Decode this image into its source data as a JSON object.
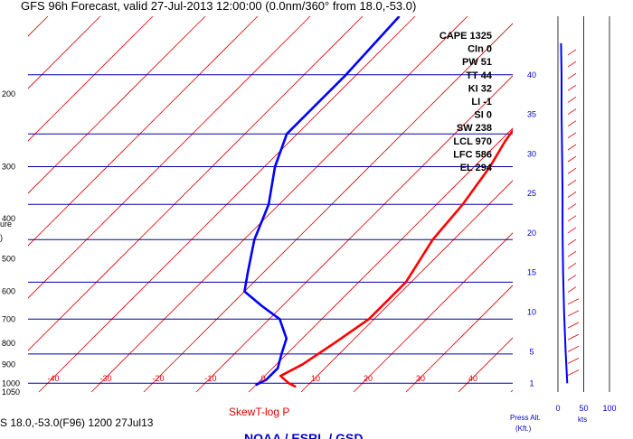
{
  "title": "GFS 96h Forecast, valid 27-Jul-2013 12:00:00 (0.0nm/360° from 18.0,-53.0)",
  "footer_left": "S 18.0,-53.0(F96) 1200 27Jul13",
  "footer_center": "SkewT-log P",
  "footer_org": "NOAA / ESRL / GSD",
  "ylabel_fragment": "ure",
  "ylabel_paren": ")",
  "wind_axis_label": "kts",
  "alt_axis_label_1": "Press Alt.",
  "alt_axis_label_2": "(Kft.)",
  "colors": {
    "isobar": "#0000aa",
    "isotherm": "#dd0000",
    "temperature": "#ff0000",
    "dewpoint": "#0000ff",
    "text_blue": "#0000cc"
  },
  "indices": [
    {
      "label": "CAPE 1325"
    },
    {
      "label": "CIn 0"
    },
    {
      "label": "PW 51"
    },
    {
      "label": "TT 44"
    },
    {
      "label": "KI 32"
    },
    {
      "label": "LI -1"
    },
    {
      "label": "SI 0"
    },
    {
      "label": "SW 238"
    },
    {
      "label": "LCL 970"
    },
    {
      "label": "LFC 586"
    },
    {
      "label": "EL 294"
    }
  ],
  "chart_data": [
    {
      "type": "line",
      "title": "SkewT-log P",
      "pressure_ticks": [
        200,
        300,
        400,
        500,
        600,
        700,
        800,
        900,
        1000,
        1050
      ],
      "isobars": [
        180,
        250,
        300,
        370,
        450,
        570,
        700,
        850,
        1000
      ],
      "temperature_ticks": [
        -40,
        -30,
        -20,
        -10,
        0,
        10,
        20,
        30,
        40
      ],
      "ylim": [
        130,
        1050
      ],
      "series": [
        {
          "key": "temperature",
          "color": "#ff0000",
          "points": [
            {
              "p": 130,
              "t": -5
            },
            {
              "p": 180,
              "t": -3
            },
            {
              "p": 210,
              "t": -1
            },
            {
              "p": 260,
              "t": 1
            },
            {
              "p": 300,
              "t": 3
            },
            {
              "p": 370,
              "t": 5
            },
            {
              "p": 450,
              "t": 6
            },
            {
              "p": 570,
              "t": 9
            },
            {
              "p": 700,
              "t": 9
            },
            {
              "p": 800,
              "t": 7
            },
            {
              "p": 900,
              "t": 5
            },
            {
              "p": 960,
              "t": 3
            },
            {
              "p": 1000,
              "t": 6
            },
            {
              "p": 1020,
              "t": 8
            }
          ]
        },
        {
          "key": "dewpoint",
          "color": "#0000ff",
          "points": [
            {
              "p": 130,
              "t": -43
            },
            {
              "p": 180,
              "t": -42
            },
            {
              "p": 250,
              "t": -42
            },
            {
              "p": 300,
              "t": -38
            },
            {
              "p": 370,
              "t": -32
            },
            {
              "p": 450,
              "t": -28
            },
            {
              "p": 540,
              "t": -23
            },
            {
              "p": 600,
              "t": -20
            },
            {
              "p": 650,
              "t": -14
            },
            {
              "p": 700,
              "t": -8
            },
            {
              "p": 780,
              "t": -3
            },
            {
              "p": 850,
              "t": -1
            },
            {
              "p": 920,
              "t": 1
            },
            {
              "p": 980,
              "t": 1
            },
            {
              "p": 1010,
              "t": 0
            }
          ]
        }
      ]
    },
    {
      "type": "line",
      "title": "Wind profile",
      "xlabel": "kts",
      "ylabel": "Press Alt. (Kft.)",
      "x_ticks": [
        0,
        50,
        100
      ],
      "altitude_ticks": [
        1,
        5,
        10,
        15,
        20,
        25,
        30,
        35,
        40
      ],
      "ylim": [
        0,
        44
      ],
      "series": [
        {
          "key": "wind_speed",
          "color": "#0000ff",
          "points": [
            {
              "alt": 1,
              "kts": 18
            },
            {
              "alt": 5,
              "kts": 15
            },
            {
              "alt": 10,
              "kts": 12
            },
            {
              "alt": 15,
              "kts": 10
            },
            {
              "alt": 20,
              "kts": 9
            },
            {
              "alt": 25,
              "kts": 9
            },
            {
              "alt": 30,
              "kts": 8
            },
            {
              "alt": 35,
              "kts": 7
            },
            {
              "alt": 40,
              "kts": 7
            },
            {
              "alt": 44,
              "kts": 6
            }
          ]
        }
      ]
    }
  ]
}
